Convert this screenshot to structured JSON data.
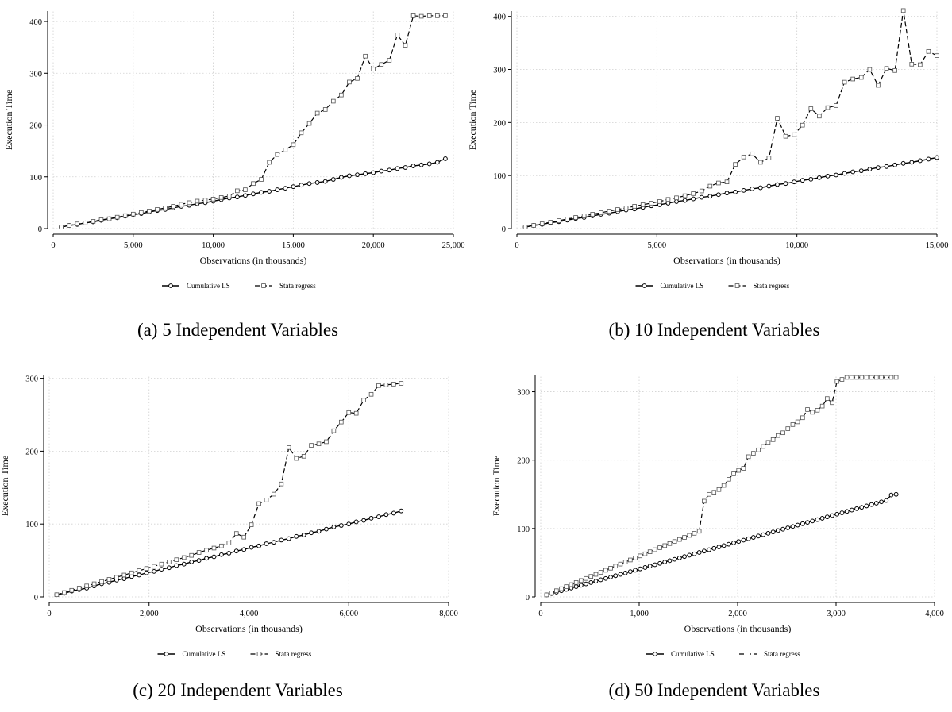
{
  "panels": [
    {
      "caption": "(a) 5 Independent Variables"
    },
    {
      "caption": "(b) 10 Independent Variables"
    },
    {
      "caption": "(c) 20 Independent Variables"
    },
    {
      "caption": "(d) 50 Independent Variables"
    }
  ],
  "chart_data": [
    {
      "type": "line",
      "xlabel": "Observations (in thousands)",
      "ylabel": "Execution Time",
      "xlim": [
        0,
        25000
      ],
      "ylim": [
        0,
        420
      ],
      "xticks": [
        0,
        5000,
        10000,
        15000,
        20000,
        25000
      ],
      "xtick_labels": [
        "0",
        "5,000",
        "10,000",
        "15,000",
        "20,000",
        "25,000"
      ],
      "yticks": [
        0,
        100,
        200,
        300,
        400
      ],
      "ytick_labels": [
        "0",
        "100",
        "200",
        "300",
        "400"
      ],
      "grid": true,
      "legend_position": "bottom",
      "series": [
        {
          "name": "Cumulative LS",
          "style": "solid-circle",
          "x": [
            500,
            1000,
            1500,
            2000,
            2500,
            3000,
            3500,
            4000,
            4500,
            5000,
            5500,
            6000,
            6500,
            7000,
            7500,
            8000,
            8500,
            9000,
            9500,
            10000,
            10500,
            11000,
            11500,
            12000,
            12500,
            13000,
            13500,
            14000,
            14500,
            15000,
            15500,
            16000,
            16500,
            17000,
            17500,
            18000,
            18500,
            19000,
            19500,
            20000,
            20500,
            21000,
            21500,
            22000,
            22500,
            23000,
            23500,
            24000,
            24500
          ],
          "y": [
            3,
            6,
            8,
            11,
            13,
            16,
            19,
            21,
            24,
            27,
            29,
            32,
            35,
            37,
            40,
            43,
            45,
            48,
            50,
            53,
            56,
            59,
            61,
            64,
            67,
            70,
            72,
            75,
            78,
            81,
            84,
            87,
            89,
            91,
            95,
            99,
            102,
            104,
            106,
            108,
            111,
            113,
            116,
            118,
            121,
            123,
            125,
            128,
            135
          ]
        },
        {
          "name": "Stata regress",
          "style": "dashed-square",
          "x": [
            500,
            1000,
            1500,
            2000,
            2500,
            3000,
            3500,
            4000,
            4500,
            5000,
            5500,
            6000,
            6500,
            7000,
            7500,
            8000,
            8500,
            9000,
            9500,
            10000,
            10500,
            11000,
            11500,
            12000,
            12500,
            13000,
            13500,
            14000,
            14500,
            15000,
            15500,
            16000,
            16500,
            17000,
            17500,
            18000,
            18500,
            19000,
            19500,
            20000,
            20500,
            21000,
            21500,
            22000,
            22500,
            23000,
            23500,
            24000,
            24500
          ],
          "y": [
            3,
            6,
            9,
            11,
            14,
            17,
            19,
            22,
            25,
            28,
            31,
            34,
            37,
            40,
            43,
            47,
            50,
            53,
            55,
            57,
            60,
            63,
            73,
            75,
            87,
            95,
            128,
            143,
            152,
            162,
            185,
            203,
            223,
            230,
            246,
            258,
            283,
            290,
            333,
            308,
            317,
            325,
            374,
            354,
            411,
            410,
            411,
            411,
            411
          ]
        }
      ]
    },
    {
      "type": "line",
      "xlabel": "Observations (in thousands)",
      "ylabel": "Execution Time",
      "xlim": [
        0,
        15000
      ],
      "ylim": [
        0,
        410
      ],
      "xticks": [
        0,
        5000,
        10000,
        15000
      ],
      "xtick_labels": [
        "0",
        "5,000",
        "10,000",
        "15,000"
      ],
      "yticks": [
        0,
        100,
        200,
        300,
        400
      ],
      "ytick_labels": [
        "0",
        "100",
        "200",
        "300",
        "400"
      ],
      "grid": true,
      "legend_position": "bottom",
      "series": [
        {
          "name": "Cumulative LS",
          "style": "solid-circle",
          "x": [
            300,
            600,
            900,
            1200,
            1500,
            1800,
            2100,
            2400,
            2700,
            3000,
            3300,
            3600,
            3900,
            4200,
            4500,
            4800,
            5100,
            5400,
            5700,
            6000,
            6300,
            6600,
            6900,
            7200,
            7500,
            7800,
            8100,
            8400,
            8700,
            9000,
            9300,
            9600,
            9900,
            10200,
            10500,
            10800,
            11100,
            11400,
            11700,
            12000,
            12300,
            12600,
            12900,
            13200,
            13500,
            13800,
            14100,
            14400,
            14700,
            15000
          ],
          "y": [
            3,
            6,
            8,
            11,
            13,
            16,
            19,
            21,
            24,
            27,
            29,
            32,
            35,
            37,
            40,
            43,
            45,
            48,
            51,
            53,
            56,
            59,
            61,
            64,
            67,
            69,
            72,
            75,
            77,
            80,
            83,
            85,
            88,
            91,
            93,
            96,
            99,
            101,
            104,
            107,
            109,
            112,
            115,
            117,
            120,
            123,
            125,
            128,
            131,
            134
          ]
        },
        {
          "name": "Stata regress",
          "style": "dashed-square",
          "x": [
            300,
            600,
            900,
            1200,
            1500,
            1800,
            2100,
            2400,
            2700,
            3000,
            3300,
            3600,
            3900,
            4200,
            4500,
            4800,
            5100,
            5400,
            5700,
            6000,
            6300,
            6600,
            6900,
            7200,
            7500,
            7800,
            8100,
            8400,
            8700,
            9000,
            9300,
            9600,
            9900,
            10200,
            10500,
            10800,
            11100,
            11400,
            11700,
            12000,
            12300,
            12600,
            12900,
            13200,
            13500,
            13800,
            14100,
            14400,
            14700,
            15000
          ],
          "y": [
            3,
            6,
            9,
            12,
            15,
            18,
            21,
            24,
            27,
            30,
            33,
            36,
            39,
            42,
            45,
            48,
            51,
            55,
            58,
            62,
            66,
            71,
            80,
            86,
            88,
            121,
            135,
            141,
            125,
            133,
            208,
            174,
            177,
            195,
            226,
            212,
            228,
            232,
            276,
            282,
            285,
            300,
            270,
            302,
            298,
            411,
            310,
            309,
            334,
            326
          ]
        }
      ]
    },
    {
      "type": "line",
      "xlabel": "Observations (in thousands)",
      "ylabel": "Execution Time",
      "xlim": [
        0,
        8000
      ],
      "ylim": [
        0,
        305
      ],
      "xticks": [
        0,
        2000,
        4000,
        6000,
        8000
      ],
      "xtick_labels": [
        "0",
        "2,000",
        "4,000",
        "6,000",
        "8,000"
      ],
      "yticks": [
        0,
        100,
        200,
        300
      ],
      "ytick_labels": [
        "0",
        "100",
        "200",
        "300"
      ],
      "grid": true,
      "legend_position": "bottom",
      "series": [
        {
          "name": "Cumulative LS",
          "style": "solid-circle",
          "x": [
            150,
            300,
            450,
            600,
            750,
            900,
            1050,
            1200,
            1350,
            1500,
            1650,
            1800,
            1950,
            2100,
            2250,
            2400,
            2550,
            2700,
            2850,
            3000,
            3150,
            3300,
            3450,
            3600,
            3750,
            3900,
            4050,
            4200,
            4350,
            4500,
            4650,
            4800,
            4950,
            5100,
            5250,
            5400,
            5550,
            5700,
            5850,
            6000,
            6150,
            6300,
            6450,
            6600,
            6750,
            6900,
            7050
          ],
          "y": [
            3,
            5,
            8,
            10,
            12,
            15,
            18,
            20,
            23,
            25,
            28,
            30,
            33,
            35,
            38,
            40,
            43,
            45,
            48,
            50,
            53,
            55,
            58,
            60,
            63,
            65,
            68,
            70,
            73,
            75,
            78,
            80,
            83,
            85,
            88,
            90,
            93,
            96,
            98,
            100,
            103,
            105,
            108,
            110,
            113,
            115,
            118
          ]
        },
        {
          "name": "Stata regress",
          "style": "dashed-square",
          "x": [
            150,
            300,
            450,
            600,
            750,
            900,
            1050,
            1200,
            1350,
            1500,
            1650,
            1800,
            1950,
            2100,
            2250,
            2400,
            2550,
            2700,
            2850,
            3000,
            3150,
            3300,
            3450,
            3600,
            3750,
            3900,
            4050,
            4200,
            4350,
            4500,
            4650,
            4800,
            4950,
            5100,
            5250,
            5400,
            5550,
            5700,
            5850,
            6000,
            6150,
            6300,
            6450,
            6600,
            6750,
            6900,
            7050
          ],
          "y": [
            3,
            6,
            9,
            12,
            15,
            18,
            21,
            24,
            27,
            30,
            33,
            36,
            39,
            42,
            45,
            48,
            51,
            54,
            57,
            61,
            64,
            67,
            70,
            74,
            87,
            82,
            99,
            128,
            133,
            141,
            155,
            205,
            190,
            193,
            208,
            210,
            213,
            228,
            240,
            253,
            252,
            270,
            278,
            290,
            291,
            292,
            293
          ]
        }
      ]
    },
    {
      "type": "line",
      "xlabel": "Observations (in thousands)",
      "ylabel": "Execution Time",
      "xlim": [
        0,
        4000
      ],
      "ylim": [
        0,
        325
      ],
      "xticks": [
        0,
        1000,
        2000,
        3000,
        4000
      ],
      "xtick_labels": [
        "0",
        "1,000",
        "2,000",
        "3,000",
        "4,000"
      ],
      "yticks": [
        0,
        100,
        200,
        300
      ],
      "ytick_labels": [
        "0",
        "100",
        "200",
        "300"
      ],
      "grid": true,
      "legend_position": "bottom",
      "series": [
        {
          "name": "Cumulative LS",
          "style": "solid-circle",
          "x": [
            60,
            110,
            160,
            210,
            260,
            310,
            360,
            410,
            460,
            510,
            560,
            610,
            660,
            710,
            760,
            810,
            860,
            910,
            960,
            1010,
            1060,
            1110,
            1160,
            1210,
            1260,
            1310,
            1360,
            1410,
            1460,
            1510,
            1560,
            1610,
            1660,
            1710,
            1760,
            1810,
            1860,
            1910,
            1960,
            2010,
            2060,
            2110,
            2160,
            2210,
            2260,
            2310,
            2360,
            2410,
            2460,
            2510,
            2560,
            2610,
            2660,
            2710,
            2760,
            2810,
            2860,
            2910,
            2960,
            3010,
            3060,
            3110,
            3160,
            3210,
            3260,
            3310,
            3360,
            3410,
            3460,
            3510,
            3560,
            3610
          ],
          "y": [
            3,
            5,
            7,
            9,
            11,
            13,
            15,
            17,
            19,
            21,
            23,
            25,
            27,
            29,
            31,
            33,
            35,
            37,
            39,
            41,
            43,
            45,
            47,
            49,
            51,
            53,
            55,
            57,
            59,
            61,
            63,
            65,
            67,
            69,
            71,
            73,
            75,
            77,
            79,
            81,
            83,
            85,
            87,
            89,
            91,
            93,
            95,
            97,
            99,
            101,
            103,
            105,
            107,
            109,
            111,
            113,
            115,
            117,
            119,
            121,
            123,
            125,
            127,
            129,
            131,
            133,
            135,
            137,
            139,
            141,
            149,
            150
          ]
        },
        {
          "name": "Stata regress",
          "style": "dashed-square",
          "x": [
            60,
            110,
            160,
            210,
            260,
            310,
            360,
            410,
            460,
            510,
            560,
            610,
            660,
            710,
            760,
            810,
            860,
            910,
            960,
            1010,
            1060,
            1110,
            1160,
            1210,
            1260,
            1310,
            1360,
            1410,
            1460,
            1510,
            1560,
            1610,
            1660,
            1710,
            1760,
            1810,
            1860,
            1910,
            1960,
            2010,
            2060,
            2110,
            2160,
            2210,
            2260,
            2310,
            2360,
            2410,
            2460,
            2510,
            2560,
            2610,
            2660,
            2710,
            2760,
            2810,
            2860,
            2910,
            2960,
            3010,
            3060,
            3110,
            3160,
            3210,
            3260,
            3310,
            3360,
            3410,
            3460,
            3510,
            3560,
            3610
          ],
          "y": [
            3,
            6,
            9,
            12,
            15,
            18,
            21,
            24,
            27,
            30,
            33,
            36,
            39,
            42,
            45,
            48,
            51,
            54,
            57,
            60,
            63,
            66,
            69,
            72,
            75,
            78,
            81,
            84,
            87,
            90,
            93,
            96,
            140,
            150,
            153,
            157,
            163,
            172,
            180,
            185,
            188,
            205,
            210,
            215,
            220,
            226,
            230,
            236,
            240,
            246,
            252,
            256,
            262,
            274,
            270,
            273,
            279,
            290,
            284,
            315,
            318,
            321,
            321,
            321,
            321,
            321,
            321,
            321,
            321,
            321,
            321,
            321
          ]
        }
      ]
    }
  ]
}
